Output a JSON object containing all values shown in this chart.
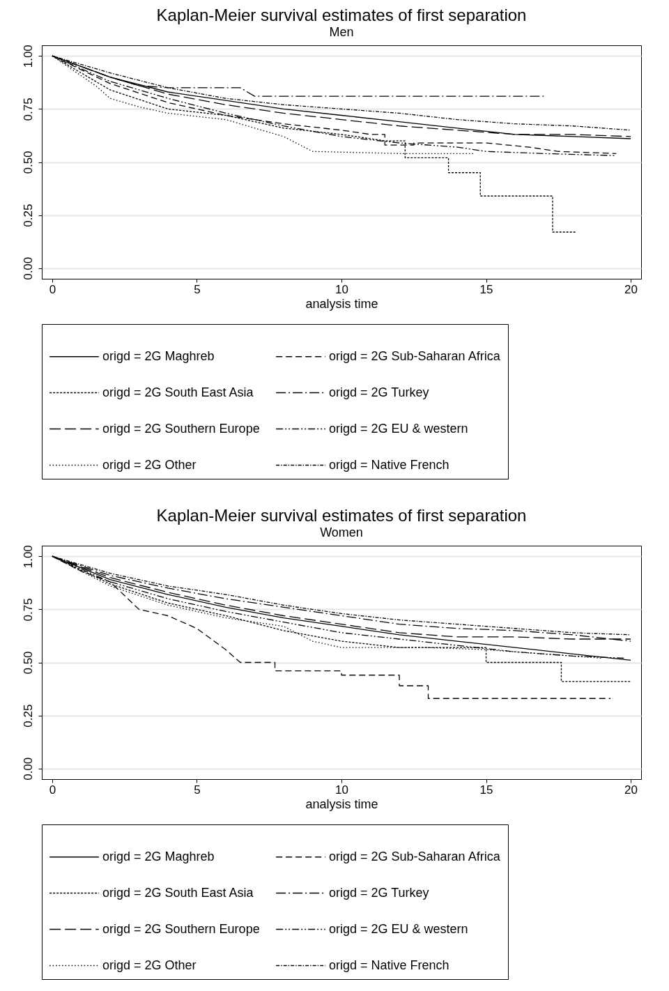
{
  "chart_data": [
    {
      "type": "line",
      "title": "Kaplan-Meier survival estimates of first separation",
      "subtitle": "Men",
      "xlabel": "analysis time",
      "xlim": [
        -0.36,
        20.36
      ],
      "ylim": [
        -0.05,
        1.05
      ],
      "xticks": [
        0,
        5,
        10,
        15,
        20
      ],
      "yticks": [
        {
          "value": 0,
          "label": "0.00"
        },
        {
          "value": 0.25,
          "label": "0.25"
        },
        {
          "value": 0.5,
          "label": "0.50"
        },
        {
          "value": 0.75,
          "label": "0.75"
        },
        {
          "value": 1,
          "label": "1.00"
        }
      ],
      "grid": "y",
      "legend": "bottom",
      "series": [
        {
          "name": "origd = 2G Maghreb",
          "color": "#000000",
          "line_style": "solid",
          "x": [
            0,
            2,
            4,
            6,
            8,
            10,
            12,
            14,
            16,
            18,
            20
          ],
          "values": [
            1,
            0.9,
            0.83,
            0.79,
            0.75,
            0.72,
            0.69,
            0.66,
            0.63,
            0.62,
            0.61
          ]
        },
        {
          "name": "origd = 2G Sub-Saharan Africa",
          "color": "#000000",
          "line_style": "dashed",
          "x": [
            0,
            2,
            4,
            6,
            8,
            10,
            11,
            11.5,
            11.5,
            12.5,
            12.5,
            15,
            16.5,
            17.5,
            19.5
          ],
          "values": [
            1,
            0.87,
            0.78,
            0.72,
            0.68,
            0.65,
            0.63,
            0.63,
            0.58,
            0.58,
            0.59,
            0.59,
            0.57,
            0.55,
            0.54
          ]
        },
        {
          "name": "origd = 2G South East Asia",
          "color": "#000000",
          "line_style": "dotted",
          "x": [
            0,
            2,
            4,
            6,
            8,
            10,
            11.5,
            12.2,
            12.2,
            13.7,
            13.7,
            14.8,
            14.8,
            17.3,
            17.3,
            18.1
          ],
          "values": [
            1,
            0.84,
            0.75,
            0.72,
            0.66,
            0.63,
            0.6,
            0.6,
            0.52,
            0.52,
            0.45,
            0.45,
            0.34,
            0.34,
            0.17,
            0.17
          ]
        },
        {
          "name": "origd = 2G Turkey",
          "color": "#000000",
          "line_style": "longdashdot",
          "x": [
            0,
            1,
            2,
            3,
            4,
            6.5,
            7,
            17
          ],
          "values": [
            1,
            0.95,
            0.9,
            0.86,
            0.85,
            0.85,
            0.81,
            0.81
          ]
        },
        {
          "name": "origd = 2G Southern Europe",
          "color": "#000000",
          "line_style": "longdash",
          "x": [
            0,
            2,
            4,
            6,
            8,
            10,
            12,
            14,
            16,
            18,
            20
          ],
          "values": [
            1,
            0.9,
            0.82,
            0.77,
            0.73,
            0.7,
            0.67,
            0.65,
            0.63,
            0.63,
            0.62
          ]
        },
        {
          "name": "origd = 2G EU & western",
          "color": "#000000",
          "line_style": "dashdotdot",
          "x": [
            0,
            2,
            4,
            6,
            8,
            10,
            12,
            14,
            15,
            17,
            19.5
          ],
          "values": [
            1,
            0.88,
            0.8,
            0.73,
            0.67,
            0.62,
            0.59,
            0.57,
            0.55,
            0.54,
            0.53
          ]
        },
        {
          "name": "origd = 2G Other",
          "color": "#000000",
          "line_style": "sparse_dotted",
          "x": [
            0,
            1.5,
            2,
            3,
            4,
            6,
            8,
            9,
            12,
            14.6
          ],
          "values": [
            1,
            0.86,
            0.8,
            0.76,
            0.73,
            0.7,
            0.62,
            0.55,
            0.54,
            0.54
          ]
        },
        {
          "name": "origd = Native French",
          "color": "#000000",
          "line_style": "dashdot",
          "x": [
            0,
            2,
            4,
            6,
            8,
            10,
            12,
            14,
            16,
            18,
            20
          ],
          "values": [
            1,
            0.92,
            0.85,
            0.8,
            0.77,
            0.75,
            0.73,
            0.7,
            0.68,
            0.67,
            0.65
          ]
        }
      ]
    },
    {
      "type": "line",
      "title": "Kaplan-Meier survival estimates of first separation",
      "subtitle": "Women",
      "xlabel": "analysis time",
      "xlim": [
        -0.36,
        20.36
      ],
      "ylim": [
        -0.05,
        1.05
      ],
      "xticks": [
        0,
        5,
        10,
        15,
        20
      ],
      "yticks": [
        {
          "value": 0,
          "label": "0.00"
        },
        {
          "value": 0.25,
          "label": "0.25"
        },
        {
          "value": 0.5,
          "label": "0.50"
        },
        {
          "value": 0.75,
          "label": "0.75"
        },
        {
          "value": 1,
          "label": "1.00"
        }
      ],
      "grid": "y",
      "legend": "bottom",
      "series": [
        {
          "name": "origd = 2G Maghreb",
          "color": "#000000",
          "line_style": "solid",
          "x": [
            0,
            2,
            4,
            6,
            8,
            10,
            12,
            14,
            16,
            18,
            20
          ],
          "values": [
            1,
            0.89,
            0.82,
            0.76,
            0.71,
            0.67,
            0.63,
            0.6,
            0.57,
            0.54,
            0.51
          ]
        },
        {
          "name": "origd = 2G Sub-Saharan Africa",
          "color": "#000000",
          "line_style": "dashed",
          "x": [
            0,
            1,
            2,
            3,
            4,
            5,
            6,
            6.5,
            7.7,
            7.7,
            10,
            10,
            12,
            12,
            13,
            13,
            19.3
          ],
          "values": [
            1,
            0.93,
            0.88,
            0.75,
            0.72,
            0.66,
            0.56,
            0.5,
            0.5,
            0.46,
            0.46,
            0.44,
            0.44,
            0.39,
            0.39,
            0.33,
            0.33
          ]
        },
        {
          "name": "origd = 2G South East Asia",
          "color": "#000000",
          "line_style": "dotted",
          "x": [
            0,
            2,
            4,
            6,
            8,
            10,
            12,
            15,
            15,
            17.6,
            17.6,
            20
          ],
          "values": [
            1,
            0.87,
            0.78,
            0.72,
            0.65,
            0.6,
            0.57,
            0.57,
            0.5,
            0.5,
            0.41,
            0.41
          ]
        },
        {
          "name": "origd = 2G Turkey",
          "color": "#000000",
          "line_style": "longdashdot",
          "x": [
            0,
            2,
            4,
            6,
            8,
            10,
            12,
            14,
            16,
            18,
            20
          ],
          "values": [
            1,
            0.91,
            0.85,
            0.8,
            0.76,
            0.72,
            0.68,
            0.66,
            0.65,
            0.63,
            0.6
          ]
        },
        {
          "name": "origd = 2G Southern Europe",
          "color": "#000000",
          "line_style": "longdash",
          "x": [
            0,
            2,
            4,
            6,
            8,
            10,
            12,
            14,
            16,
            18,
            20
          ],
          "values": [
            1,
            0.9,
            0.83,
            0.77,
            0.72,
            0.68,
            0.64,
            0.62,
            0.62,
            0.61,
            0.61
          ]
        },
        {
          "name": "origd = 2G EU & western",
          "color": "#000000",
          "line_style": "dashdotdot",
          "x": [
            0,
            2,
            4,
            6,
            8,
            10,
            12,
            14,
            16,
            18,
            19.8
          ],
          "values": [
            1,
            0.88,
            0.8,
            0.74,
            0.69,
            0.64,
            0.61,
            0.58,
            0.55,
            0.53,
            0.52
          ]
        },
        {
          "name": "origd = 2G Other",
          "color": "#000000",
          "line_style": "sparse_dotted",
          "x": [
            0,
            2,
            4,
            6,
            8,
            9,
            10,
            13,
            15,
            17,
            19
          ],
          "values": [
            1,
            0.86,
            0.77,
            0.71,
            0.67,
            0.6,
            0.57,
            0.57,
            0.56,
            0.54,
            0.52
          ]
        },
        {
          "name": "origd = Native French",
          "color": "#000000",
          "line_style": "dashdot",
          "x": [
            0,
            2,
            4,
            6,
            8,
            10,
            12,
            14,
            16,
            18,
            20
          ],
          "values": [
            1,
            0.92,
            0.86,
            0.82,
            0.77,
            0.73,
            0.7,
            0.68,
            0.66,
            0.64,
            0.63
          ]
        }
      ]
    }
  ]
}
